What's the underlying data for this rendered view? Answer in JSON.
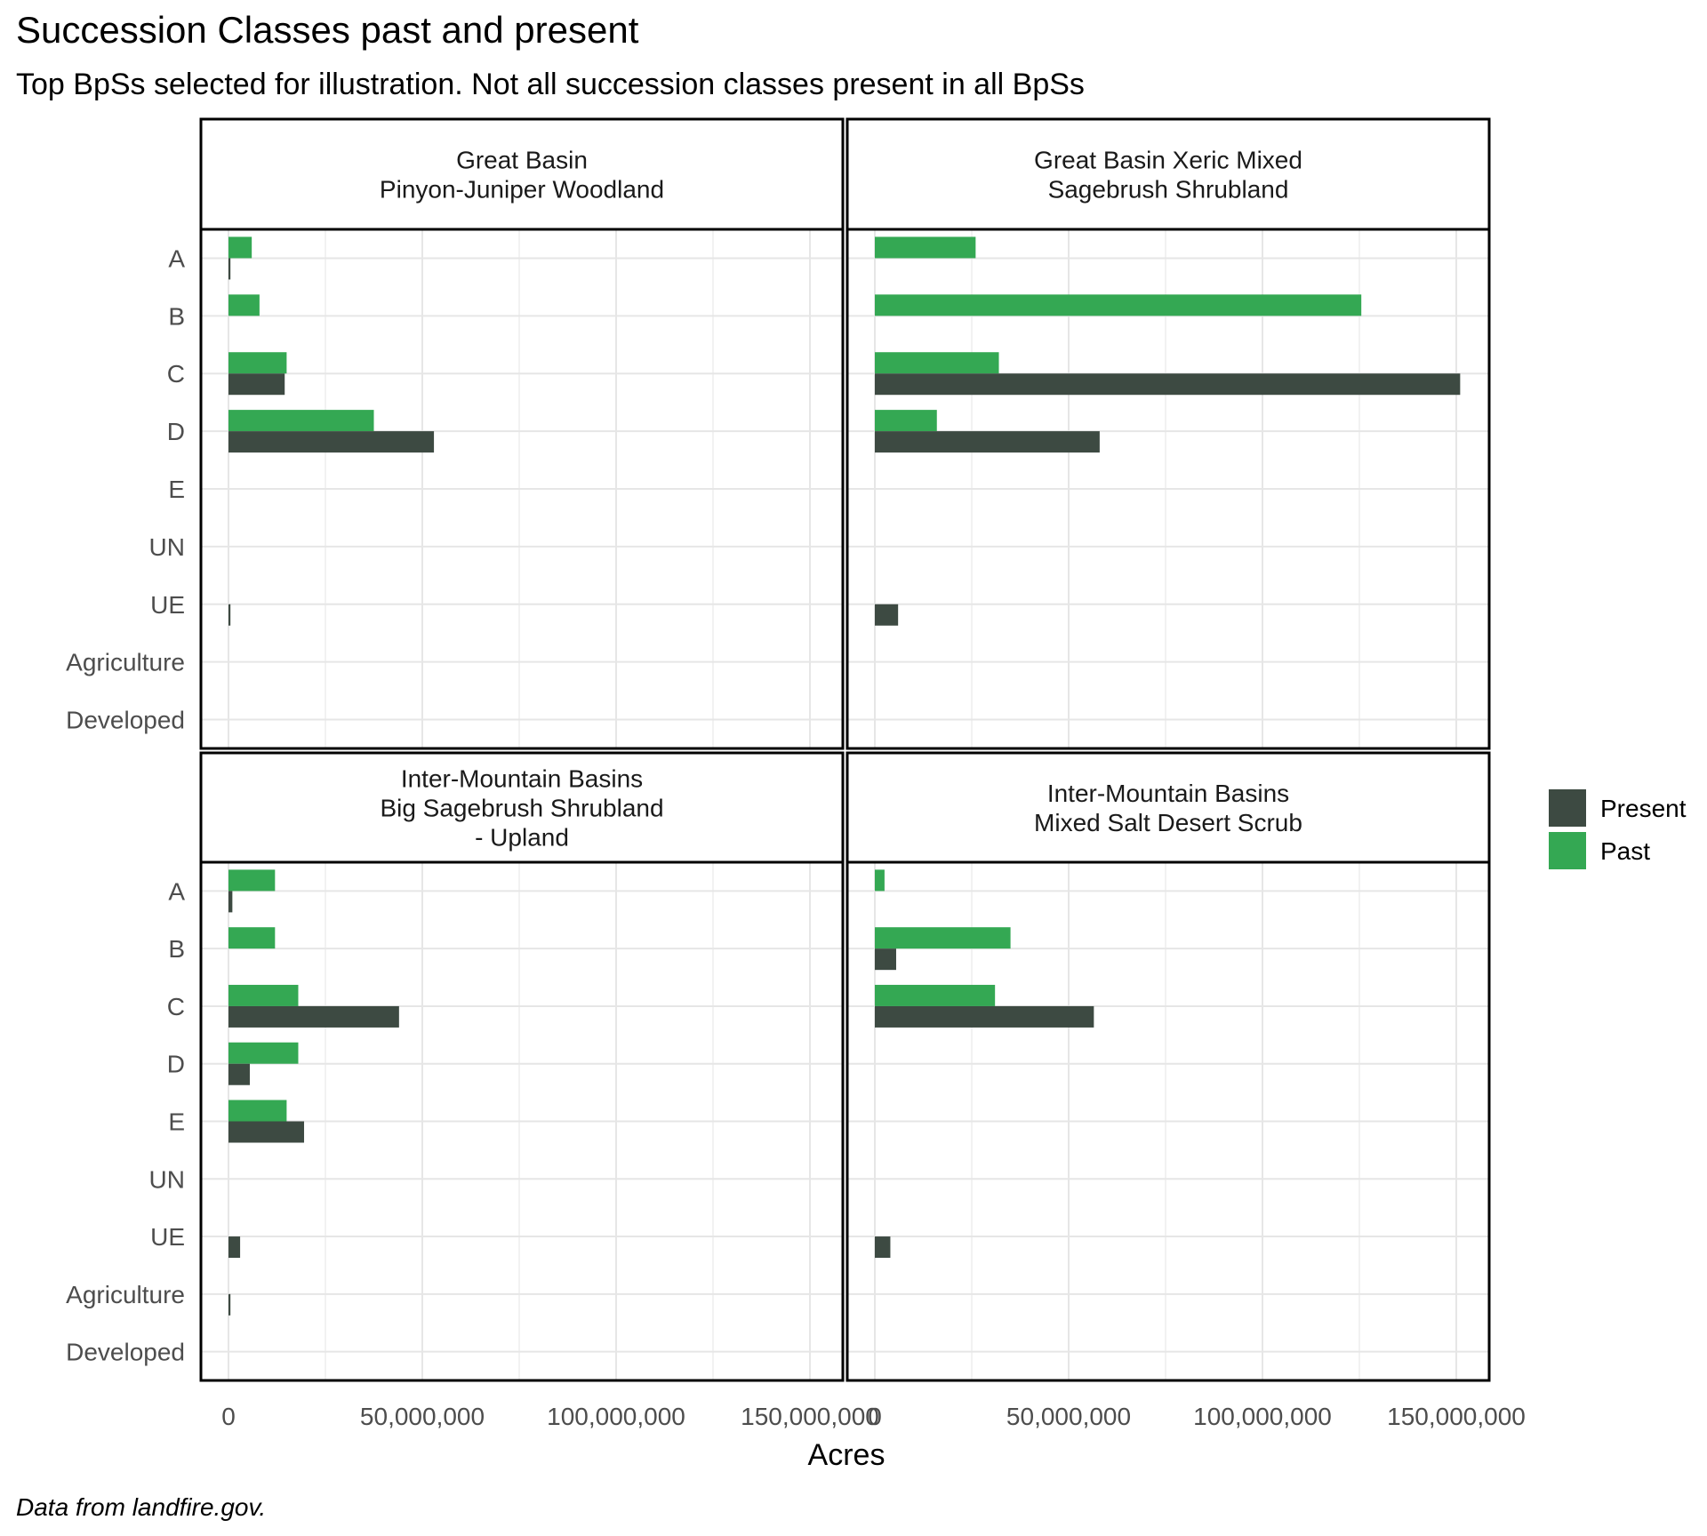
{
  "title": "Succession Classes past and present",
  "subtitle": "Top BpSs selected for illustration. Not all succession classes present in all BpSs",
  "caption": "Data from landfire.gov.",
  "chart_data": {
    "type": "bar",
    "orientation": "horizontal",
    "layout": "facet 2x2",
    "categories": [
      "A",
      "B",
      "C",
      "D",
      "E",
      "UN",
      "UE",
      "Agriculture",
      "Developed"
    ],
    "xlabel": "Acres",
    "ylabel": "",
    "xlim": [
      0,
      150000000
    ],
    "x_ticks": [
      0,
      50000000,
      100000000,
      150000000
    ],
    "x_tick_labels": [
      "0",
      "50,000,000",
      "100,000,000",
      "150,000,000"
    ],
    "grid": true,
    "legend": {
      "position": "right",
      "entries": [
        "Present",
        "Past"
      ]
    },
    "colors": {
      "Present": "#3d4a42",
      "Past": "#34a853"
    },
    "facets": [
      {
        "strip": [
          "Great Basin",
          "Pinyon-Juniper Woodland"
        ],
        "series": [
          {
            "name": "Present",
            "values": [
              500000,
              0,
              14500000,
              53000000,
              0,
              0,
              500000,
              0,
              0
            ]
          },
          {
            "name": "Past",
            "values": [
              6000000,
              8000000,
              15000000,
              37500000,
              0,
              0,
              0,
              0,
              0
            ]
          }
        ]
      },
      {
        "strip": [
          "Great Basin Xeric Mixed",
          "Sagebrush Shrubland"
        ],
        "series": [
          {
            "name": "Present",
            "values": [
              0,
              0,
              151000000,
              58000000,
              0,
              0,
              6000000,
              0,
              0
            ]
          },
          {
            "name": "Past",
            "values": [
              26000000,
              125500000,
              32000000,
              16000000,
              0,
              0,
              0,
              0,
              0
            ]
          }
        ]
      },
      {
        "strip": [
          "Inter-Mountain Basins",
          "Big Sagebrush Shrubland",
          "- Upland"
        ],
        "series": [
          {
            "name": "Present",
            "values": [
              1000000,
              0,
              44000000,
              5500000,
              19500000,
              0,
              3000000,
              500000,
              0
            ]
          },
          {
            "name": "Past",
            "values": [
              12000000,
              12000000,
              18000000,
              18000000,
              15000000,
              0,
              0,
              0,
              0
            ]
          }
        ]
      },
      {
        "strip": [
          "Inter-Mountain Basins",
          "Mixed Salt Desert Scrub"
        ],
        "series": [
          {
            "name": "Present",
            "values": [
              0,
              5500000,
              56500000,
              0,
              0,
              0,
              4000000,
              0,
              0
            ]
          },
          {
            "name": "Past",
            "values": [
              2500000,
              35000000,
              31000000,
              0,
              0,
              0,
              0,
              0,
              0
            ]
          }
        ]
      }
    ]
  }
}
